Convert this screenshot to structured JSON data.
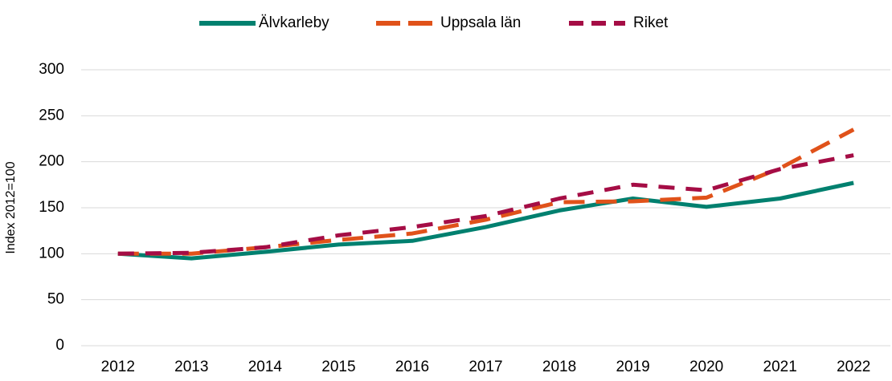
{
  "chart_data": {
    "type": "line",
    "y_label": "Index 2012=100",
    "categories": [
      "2012",
      "2013",
      "2014",
      "2015",
      "2016",
      "2017",
      "2018",
      "2019",
      "2020",
      "2021",
      "2022"
    ],
    "series": [
      {
        "name": "Älvkarleby",
        "color": "#00806f",
        "dash": "solid",
        "values": [
          100,
          95,
          102,
          110,
          114,
          129,
          147,
          160,
          151,
          160,
          177
        ]
      },
      {
        "name": "Uppsala län",
        "color": "#e0521a",
        "dash": "dashed",
        "values": [
          100,
          100,
          107,
          115,
          122,
          137,
          156,
          157,
          161,
          193,
          235
        ]
      },
      {
        "name": "Riket",
        "color": "#a50d45",
        "dash": "dashed",
        "values": [
          100,
          101,
          107,
          120,
          129,
          141,
          160,
          175,
          169,
          192,
          207
        ]
      }
    ],
    "ylim": [
      0,
      300
    ],
    "yticks": [
      0,
      50,
      100,
      150,
      200,
      250,
      300
    ],
    "grid": true,
    "legend": "top"
  }
}
